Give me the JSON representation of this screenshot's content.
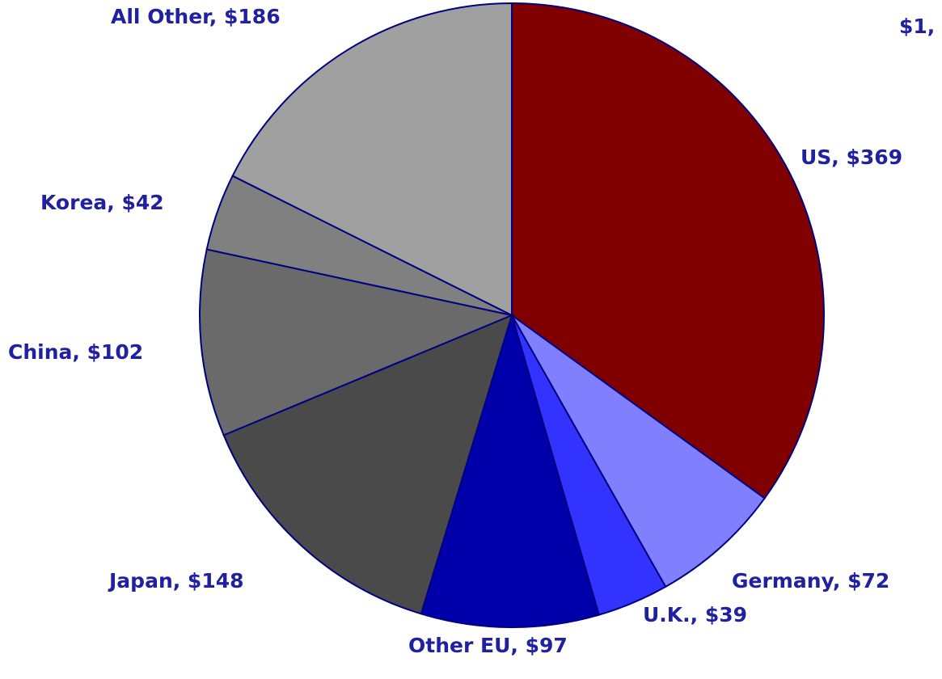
{
  "chart_data": {
    "type": "pie",
    "title": "$1,",
    "values": [
      369,
      72,
      39,
      97,
      148,
      102,
      42,
      186
    ],
    "value_labels": [
      "US, $369",
      "Germany, $72",
      "U.K., $39",
      "Other EU, $97",
      "Japan, $148",
      "China, $102",
      "Korea, $42",
      "All Other, $186"
    ],
    "colors": [
      "#800000",
      "#8080ff",
      "#3333ff",
      "#0000aa",
      "#4a4a4a",
      "#6a6a6a",
      "#808080",
      "#a0a0a0"
    ],
    "edge_color": "#000080"
  }
}
